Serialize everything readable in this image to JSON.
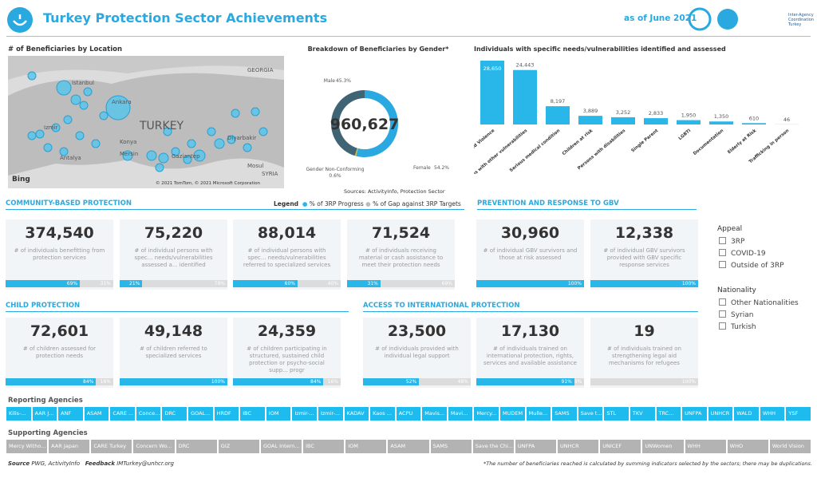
{
  "header": {
    "title": "Turkey Protection Sector Achievements",
    "date": "as of June 2021",
    "org": "Inter-Agency Coordination Turkey"
  },
  "map": {
    "title": "# of Beneficiaries by Location",
    "labels": [
      "Istanbul",
      "Ankara",
      "TURKEY",
      "Izmir",
      "Konya",
      "Antalya",
      "Mersin",
      "Gaziantep",
      "Diyarbakir",
      "Mosul",
      "GEORGIA",
      "SYRIA"
    ],
    "brand": "Bing",
    "credit": "© 2021 TomTom, © 2021 Microsoft Corporation"
  },
  "gender": {
    "type": "pie",
    "title": "Breakdown of Beneficiaries by Gender*",
    "total": "960,627",
    "categories": [
      "Female",
      "Gender Non-Conforming",
      "Male"
    ],
    "values": [
      54.2,
      0.6,
      45.3
    ],
    "value_labels": [
      "54.2%",
      "0.6%",
      "45.3%"
    ],
    "colors": [
      "#29a9e0",
      "#d9b92a",
      "#3f6473"
    ],
    "source": "Sources: ActivityInfo, Protection Sector"
  },
  "needs": {
    "type": "bar",
    "title": "Individuals with specific needs/vulnerabilities identified and assessed",
    "color": "#29b6e8",
    "categories": [
      "Gender Based Violence",
      "Persons with other vulnerabilities",
      "Serious medical condition",
      "Children at risk",
      "Persons with disabilities",
      "Single Parent",
      "LGBTI",
      "Documentation",
      "Elderly at Risk",
      "Trafficking in person"
    ],
    "values": [
      28650,
      24443,
      8197,
      3889,
      3252,
      2833,
      1950,
      1350,
      610,
      46
    ],
    "value_labels": [
      "28,650",
      "24,443",
      "8,197",
      "3,889",
      "3,252",
      "2,833",
      "1,950",
      "1,350",
      "610",
      "46"
    ]
  },
  "legend": {
    "title": "Legend",
    "items": [
      "% of 3RP Progress",
      "% of Gap against 3RP Targets"
    ]
  },
  "sections": [
    {
      "title": "COMMUNITY-BASED PROTECTION",
      "cards": [
        {
          "value": "374,540",
          "description": "# of individuals benefitting from protection services",
          "progress": 69,
          "progress_label": "69%",
          "gap": 31,
          "gap_label": "31%"
        },
        {
          "value": "75,220",
          "description": "# of individual persons with spec... needs/vulnerabilities assessed a... identified",
          "progress": 21,
          "progress_label": "21%",
          "gap": 79,
          "gap_label": "79%"
        },
        {
          "value": "88,014",
          "description": "# of individual persons with spec... needs/vulnerabilities referred to specialized services",
          "progress": 60,
          "progress_label": "60%",
          "gap": 40,
          "gap_label": "40%"
        },
        {
          "value": "71,524",
          "description": "# of individuals receiving material or cash assistance to meet their protection needs",
          "progress": 31,
          "progress_label": "31%",
          "gap": 69,
          "gap_label": "69%"
        }
      ]
    },
    {
      "title": "PREVENTION AND RESPONSE TO GBV",
      "cards": [
        {
          "value": "30,960",
          "description": "# of individual GBV survivors and those at risk assessed",
          "progress": 100,
          "progress_label": "100%"
        },
        {
          "value": "12,338",
          "description": "# of individual GBV survivors provided with GBV specific response services",
          "progress": 100,
          "progress_label": "100%"
        }
      ]
    },
    {
      "title": "CHILD PROTECTION",
      "cards": [
        {
          "value": "72,601",
          "description": "# of children assessed for protection needs",
          "progress": 84,
          "progress_label": "84%",
          "gap": 16,
          "gap_label": "16%"
        },
        {
          "value": "49,148",
          "description": "# of children referred to specialized services",
          "progress": 100,
          "progress_label": "100%"
        },
        {
          "value": "24,359",
          "description": "# of children participating in structured, sustained child protection or psycho-social supp... progr",
          "progress": 84,
          "progress_label": "84%",
          "gap": 16,
          "gap_label": "16%"
        }
      ]
    },
    {
      "title": "ACCESS TO INTERNATIONAL PROTECTION",
      "cards": [
        {
          "value": "23,500",
          "description": "# of individuals provided with individual legal support",
          "progress": 52,
          "progress_label": "52%",
          "gap": 48,
          "gap_label": "48%"
        },
        {
          "value": "17,130",
          "description": "# of individuals trained on international protection, rights, services and available assistance",
          "progress": 91,
          "progress_label": "91%",
          "gap": 9,
          "gap_label": "9%"
        },
        {
          "value": "19",
          "description": "# of individuals trained on strengthening legal aid mechanisms for refugees",
          "gap": 100,
          "gap_label": "100%"
        }
      ]
    }
  ],
  "filters": [
    {
      "title": "Appeal",
      "options": [
        "3RP",
        "COVID-19",
        "Outside of 3RP"
      ]
    },
    {
      "title": "Nationality",
      "options": [
        "Other Nationalities",
        "Syrian",
        "Turkish"
      ]
    }
  ],
  "reporting": {
    "title": "Reporting Agencies",
    "items": [
      "Kilis-...",
      "AAR J...",
      "ANF",
      "ASAM",
      "CARE ...",
      "Conce...",
      "DRC",
      "GOAL...",
      "HRDF",
      "IBC",
      "IOM",
      "Izmir-...",
      "Izmir-...",
      "KADAV",
      "Kaos ...",
      "ACPU",
      "Mavis...",
      "Mavi...",
      "Mercy...",
      "MUDEM",
      "Mulle...",
      "SAMS",
      "Save t...",
      "STL",
      "TKV",
      "TRC...",
      "UNFPA",
      "UNHCR",
      "WALD",
      "WHH",
      "YSF"
    ]
  },
  "supporting": {
    "title": "Supporting Agencies",
    "items": [
      "Mercy Witho...",
      "AAR Japan",
      "CARE Turkey",
      "Concern Wo...",
      "DRC",
      "GIZ",
      "GOAL Intern...",
      "IBC",
      "IOM",
      "ASAM",
      "SAMS",
      "Save the Chi...",
      "UNFPA",
      "UNHCR",
      "UNICEF",
      "UNWomen",
      "WHH",
      "WHO",
      "World Vision"
    ]
  },
  "footer": {
    "source_label": "Source",
    "source": "PWG, ActivityInfo",
    "feedback_label": "Feedback",
    "feedback": "IMTurkey@unhcr.org",
    "note": "*The number of beneficiaries reached is calculated by summing indicators selected by the sectors; there may be duplications."
  }
}
